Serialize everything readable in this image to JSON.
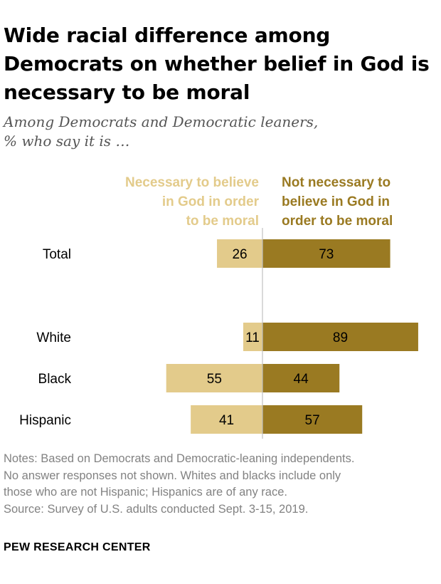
{
  "title": "Wide racial difference among Democrats on whether belief in God is necessary to be moral",
  "subtitle_line1": "Among Democrats and Democratic leaners,",
  "subtitle_line2": "% who say it is …",
  "legend": {
    "necessary": [
      "Necessary to believe",
      "in God in order",
      "to be moral"
    ],
    "not_necessary": [
      "Not necessary to",
      "believe in God in",
      "order to be moral"
    ]
  },
  "colors": {
    "necessary": "#e3cb8b",
    "not_necessary": "#9a7a22",
    "axis": "#c0c0c0"
  },
  "chart_data": {
    "type": "bar",
    "orientation": "horizontal-diverging",
    "categories": [
      "Total",
      "White",
      "Black",
      "Hispanic"
    ],
    "series": [
      {
        "name": "Necessary to believe in God in order to be moral",
        "values": [
          26,
          11,
          55,
          41
        ]
      },
      {
        "name": "Not necessary to believe in God in order to be moral",
        "values": [
          73,
          89,
          44,
          57
        ]
      }
    ],
    "xlim": [
      -55,
      89
    ]
  },
  "notes": [
    "Notes: Based on Democrats and Democratic-leaning independents.",
    "No answer responses not shown. Whites and blacks include only",
    "those who are not Hispanic; Hispanics are of any race.",
    "Source: Survey of U.S. adults conducted Sept. 3-15, 2019."
  ],
  "brand": "PEW RESEARCH CENTER"
}
